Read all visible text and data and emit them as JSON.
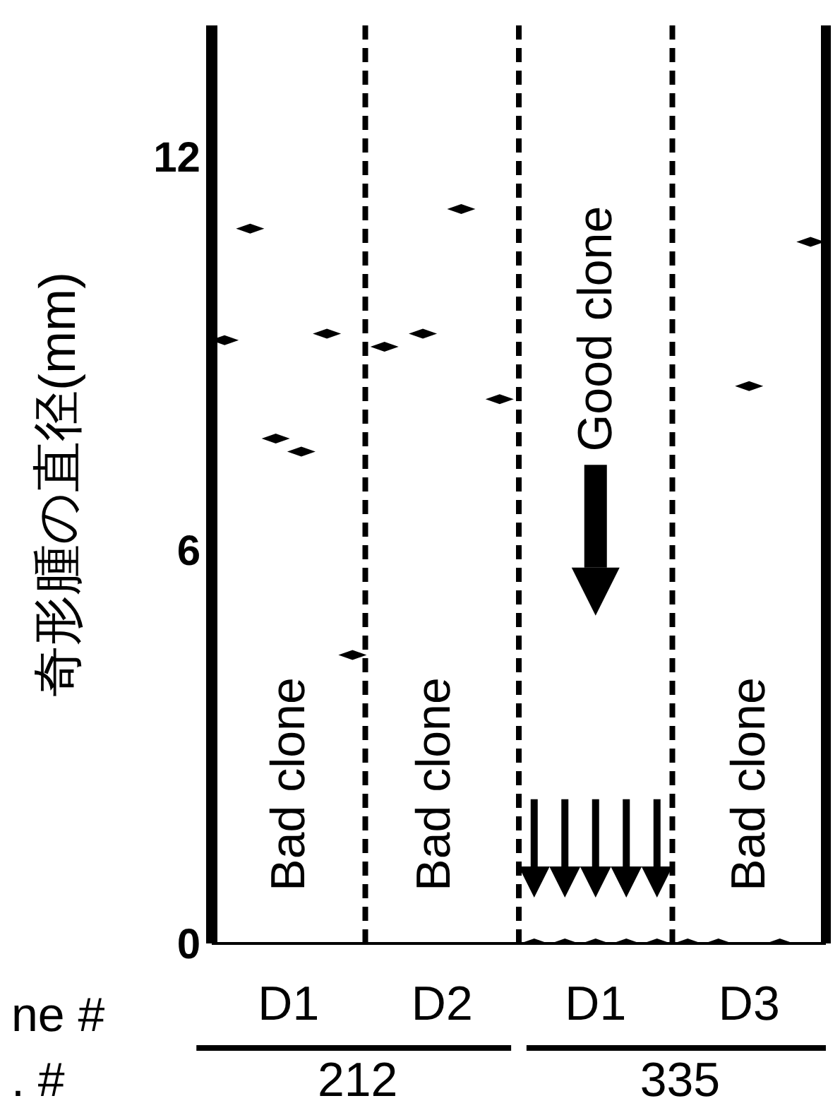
{
  "chart_data": {
    "type": "scatter",
    "ylabel": "奇形腫の直径(mm)",
    "categories": [
      "D1",
      "D2",
      "D1",
      "D3"
    ],
    "ylim": [
      0,
      14
    ],
    "yticks": [
      0,
      6,
      12
    ],
    "series": [
      {
        "color": "#000000",
        "values": [
          9.2,
          9.1,
          0,
          0
        ]
      },
      {
        "color": "#000000",
        "values": [
          10.9,
          9.3,
          0,
          0
        ]
      },
      {
        "color": "#000000",
        "values": [
          7.7,
          11.2,
          0,
          8.5
        ]
      },
      {
        "color": "#000000",
        "values": [
          7.5,
          8.3,
          0,
          0
        ]
      },
      {
        "color": "#000000",
        "values": [
          9.3,
          null,
          0,
          10.7
        ]
      },
      {
        "color": "#000000",
        "values": [
          4.4,
          null,
          null,
          null
        ]
      }
    ],
    "marker": "diamond",
    "grid": false,
    "annotations": [
      "Bad clone",
      "Bad clone",
      "Good clone",
      "Bad clone",
      "ne #",
      ". #",
      "212",
      "335"
    ]
  }
}
